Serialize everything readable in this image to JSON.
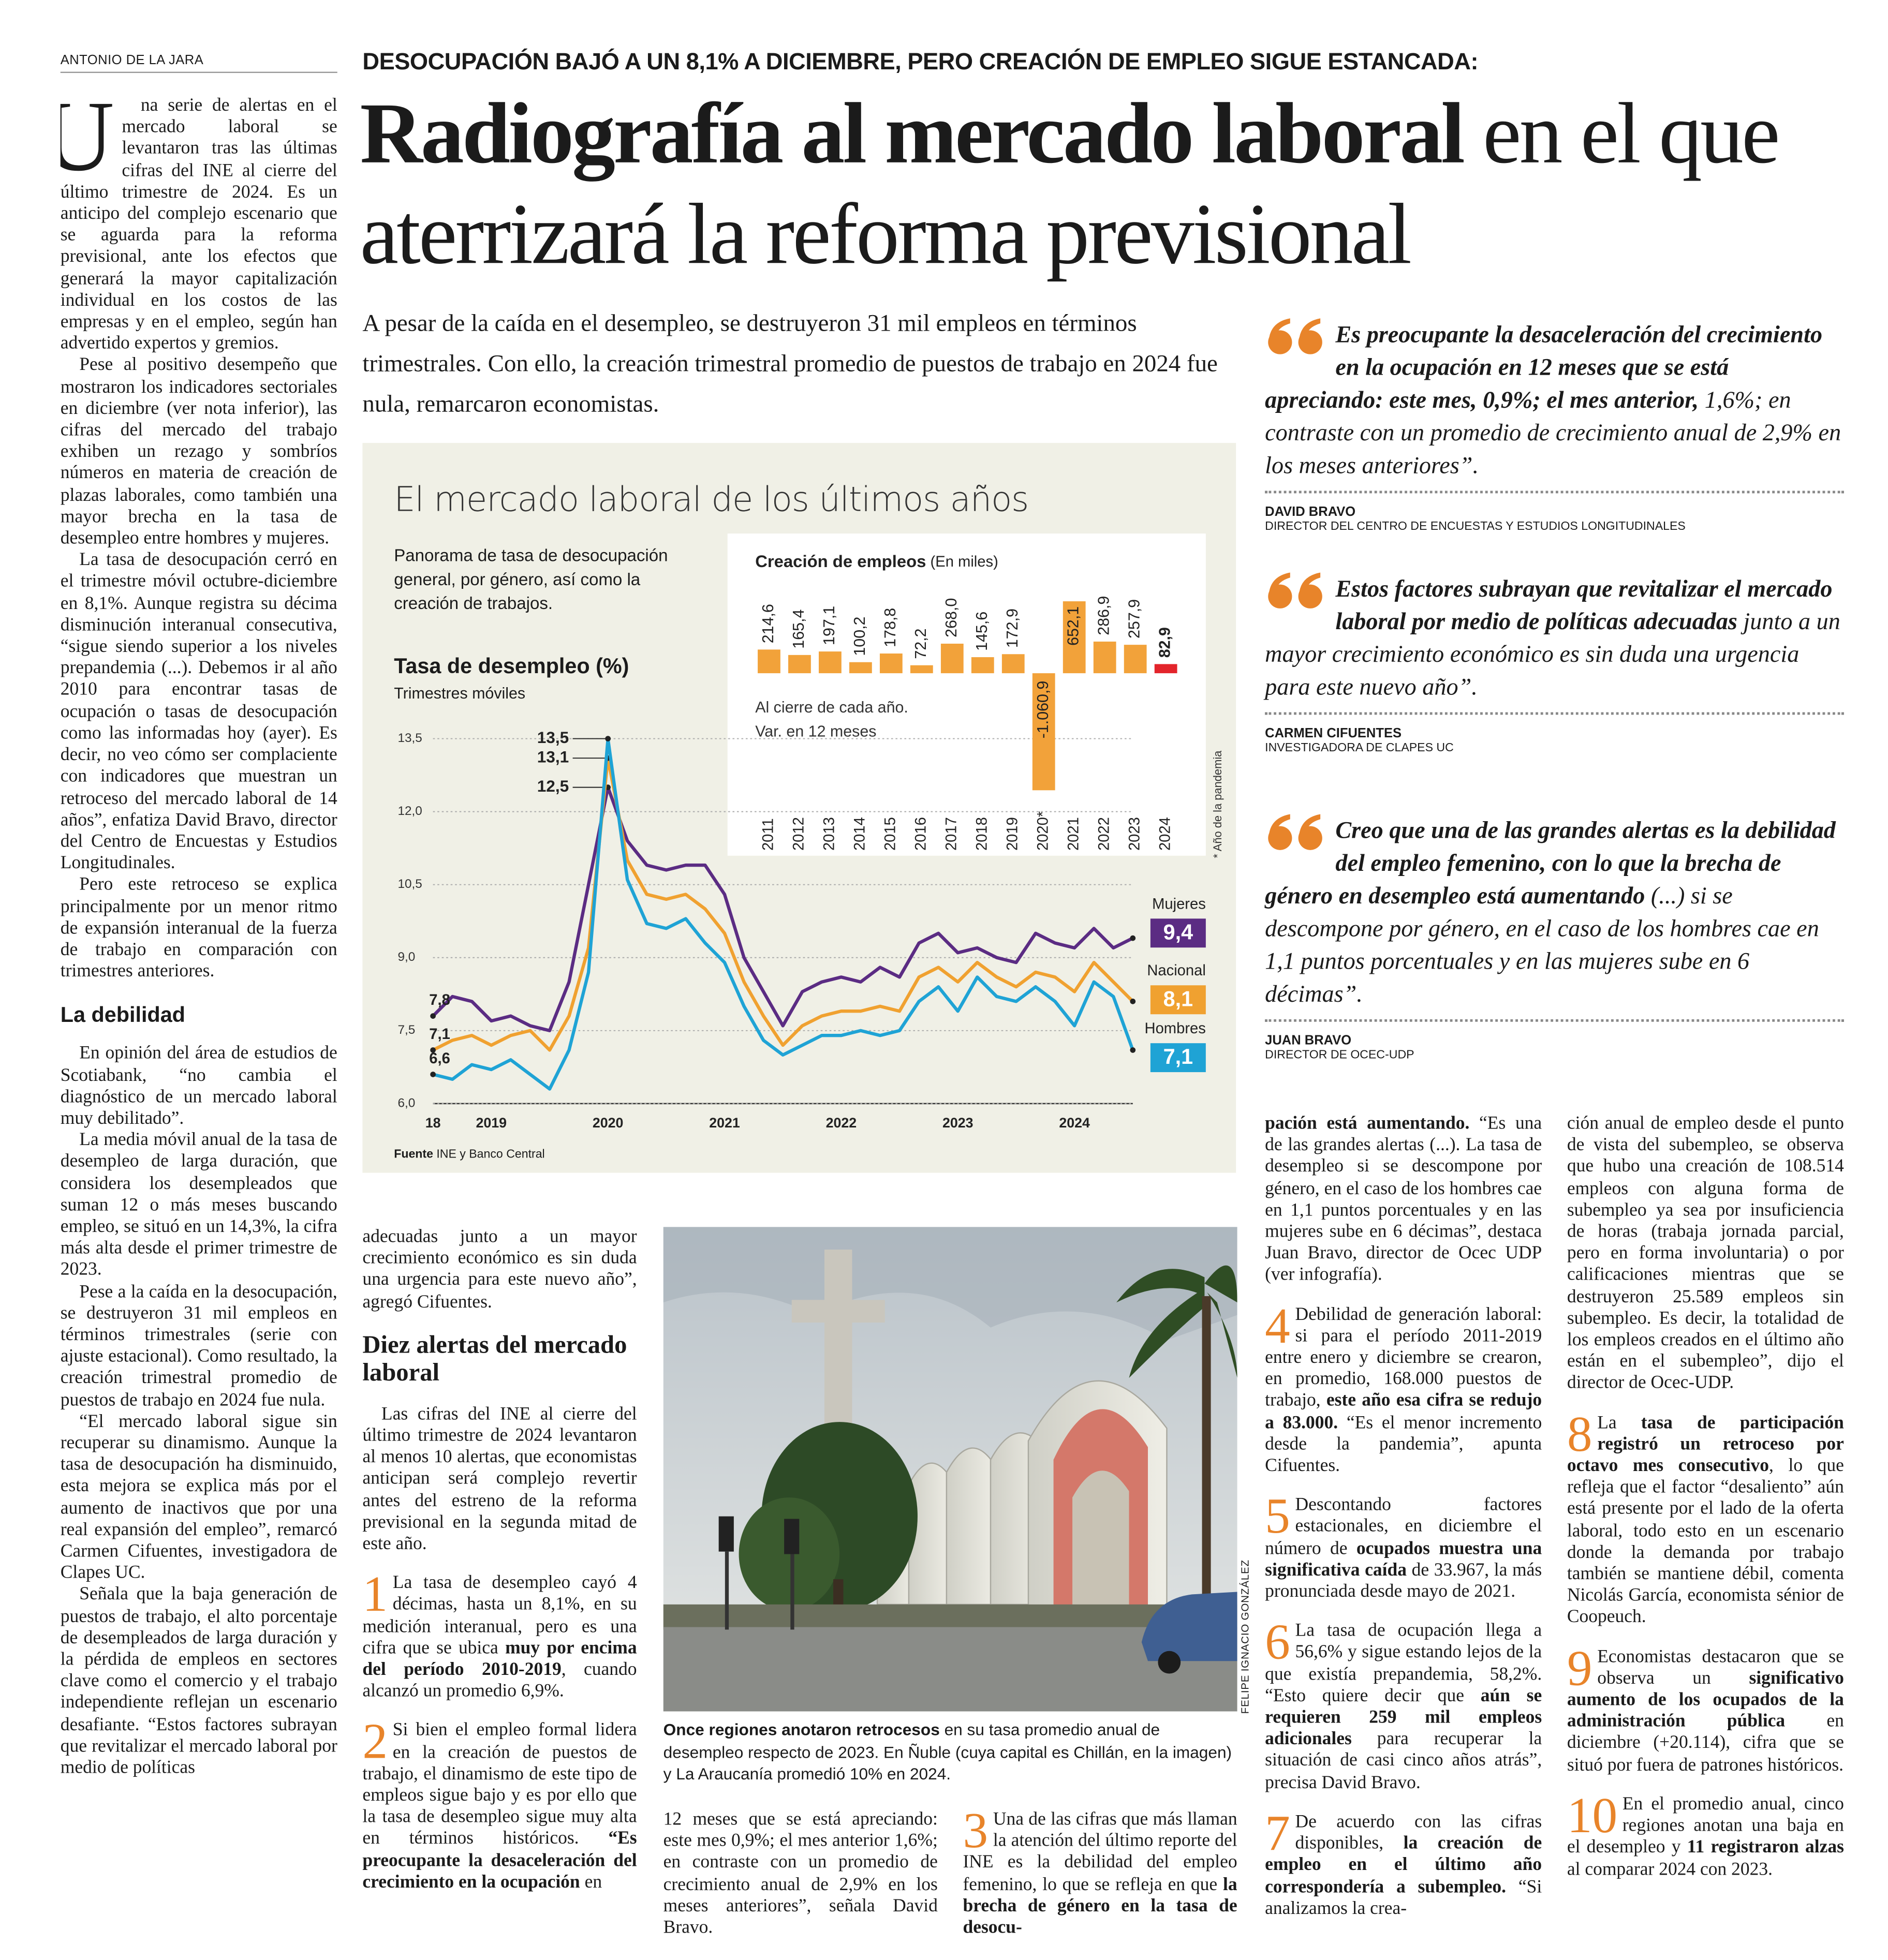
{
  "article": {
    "byline": "ANTONIO DE LA JARA",
    "kicker": "DESOCUPACIÓN BAJÓ A UN 8,1% A DICIEMBRE, PERO CREACIÓN DE EMPLEO SIGUE ESTANCADA:",
    "title": [
      {
        "text": "Radiografía al mercado laboral",
        "bold": true
      },
      {
        "text": " en el que aterrizará la reforma previsional"
      }
    ],
    "deck": "A pesar de la caída en el desempleo, se destruyeron 31 mil empleos en términos trimestrales. Con ello, la creación trimestral promedio de puestos de trabajo en 2024 fue nula, remarcaron economistas.",
    "columns": [
      [
        {
          "kind": "p",
          "dropcap": "U",
          "text": "na serie de alertas en el mercado laboral se levantaron tras las últimas cifras del INE al cierre del último trimestre de 2024. Es un anticipo del complejo escenario que se aguarda para la reforma previsional, ante los efectos que generará la mayor capitalización individual en los costos de las empresas y en el empleo, según han advertido expertos y gremios."
        },
        {
          "kind": "p",
          "text": "Pese al positivo desempeño que mostraron los indicadores sectoriales en diciembre (ver nota inferior), las cifras del mercado del trabajo exhiben un rezago y sombríos números en materia de creación de plazas laborales, como también una mayor brecha en la tasa de desempleo entre hombres y mujeres."
        },
        {
          "kind": "p",
          "text": "La tasa de desocupación cerró en el trimestre móvil octubre-diciembre en 8,1%. Aunque registra su décima disminución interanual consecutiva, “sigue siendo superior a los niveles prepandemia (...). Debemos ir al año 2010 para encontrar tasas de ocupación o tasas de desocupación como las informadas hoy (ayer). Es decir, no veo cómo ser complaciente con indicadores que muestran un retroceso del mercado laboral de 14 años”, enfatiza David Bravo, director del Centro de Encuestas y Estudios Longitudinales."
        },
        {
          "kind": "p",
          "text": "Pero este retroceso se explica principalmente por un menor ritmo de expansión interanual de la fuerza de trabajo en comparación con trimestres anteriores."
        },
        {
          "kind": "h",
          "text": "La debilidad"
        },
        {
          "kind": "p",
          "text": "En opinión del área de estudios de Scotiabank, “no cambia el diagnóstico de un mercado laboral muy debilitado”."
        },
        {
          "kind": "p",
          "text": "La media móvil anual de la tasa de desempleo de larga duración, que considera los desempleados que suman 12 o más meses buscando empleo, se situó en un 14,3%, la cifra más alta desde el primer trimestre de 2023."
        },
        {
          "kind": "p",
          "text": "Pese a la caída en la desocupación, se destruyeron 31 mil empleos en términos trimestrales (serie con ajuste estacional). Como resultado, la creación trimestral promedio de puestos de trabajo en 2024 fue nula."
        },
        {
          "kind": "p",
          "text": "“El mercado laboral sigue sin recuperar su dinamismo. Aunque la tasa de desocupación ha disminuido, esta mejora se explica más por el aumento de inactivos que por una real expansión del empleo”, remarcó Carmen Cifuentes, investigadora de Clapes UC."
        },
        {
          "kind": "p",
          "text": "Señala que la baja generación de puestos de trabajo, el alto porcentaje de desempleados de larga duración y la pérdida de empleos en sectores clave como el comercio y el trabajo independiente reflejan un escenario desafiante. “Estos factores subrayan que revitalizar el mercado laboral por medio de políticas"
        }
      ],
      [
        {
          "kind": "p",
          "indent": false,
          "text": "adecuadas junto a un mayor crecimiento económico es sin duda una urgencia para este nuevo año”, agregó Cifuentes."
        },
        {
          "kind": "hs",
          "text": "Diez alertas del mercado laboral"
        },
        {
          "kind": "p",
          "text": "Las cifras del INE al cierre del último trimestre de 2024 levantaron al menos 10 alertas, que economistas anticipan será complejo revertir antes del estreno de la reforma previsional en la segunda mitad de este año."
        },
        {
          "kind": "item",
          "number": "1",
          "runs": [
            {
              "text": "La tasa de desempleo cayó 4 décimas, hasta un 8,1%, en su medición interanual, pero es una cifra que se ubica "
            },
            {
              "text": "muy por encima del período 2010-2019",
              "bold": true
            },
            {
              "text": ", cuando alcanzó un promedio 6,9%."
            }
          ]
        },
        {
          "kind": "item",
          "number": "2",
          "runs": [
            {
              "text": "Si bien el empleo formal lidera en la creación de puestos de trabajo, el dinamismo de este tipo de empleos sigue bajo y es por ello que la tasa de desempleo sigue muy alta en términos históricos. "
            },
            {
              "text": "“Es preocupante la desaceleración del crecimiento en la ocupación",
              "bold": true
            },
            {
              "text": " en"
            }
          ]
        }
      ],
      [
        {
          "kind": "p",
          "indent": false,
          "text": "12 meses que se está apreciando: este mes 0,9%; el mes anterior 1,6%; en contraste con un promedio de crecimiento anual de 2,9% en los meses anteriores”, señala David Bravo."
        }
      ],
      [
        {
          "kind": "item",
          "number": "3",
          "runs": [
            {
              "text": "Una de las cifras que más llaman la atención del último reporte del INE es la debilidad del empleo femenino, lo que se refleja en que "
            },
            {
              "text": "la brecha de género en la tasa de desocu-",
              "bold": true
            }
          ]
        }
      ],
      [
        {
          "kind": "p",
          "indent": false,
          "runs": [
            {
              "text": "pación está aumentando.",
              "bold": true
            },
            {
              "text": " “Es una de las grandes alertas (...). La tasa de desempleo si se descompone por género, en el caso de los hombres cae en 1,1 puntos porcentuales y en las mujeres sube en 6 décimas”, destaca Juan Bravo, director de Ocec UDP (ver infografía)."
            }
          ]
        },
        {
          "kind": "item",
          "number": "4",
          "runs": [
            {
              "text": "Debilidad de generación laboral: si para el período 2011-2019 entre enero y diciembre se crearon, en promedio, 168.000 puestos de trabajo, "
            },
            {
              "text": "este año esa cifra se redujo a 83.000.",
              "bold": true
            },
            {
              "text": " “Es el menor incremento desde la pandemia”, apunta Cifuentes."
            }
          ]
        },
        {
          "kind": "item",
          "number": "5",
          "runs": [
            {
              "text": "Descontando factores estacionales, en diciembre el número de "
            },
            {
              "text": "ocupados muestra una significativa caída",
              "bold": true
            },
            {
              "text": " de 33.967, la más pronunciada desde mayo de 2021."
            }
          ]
        },
        {
          "kind": "item",
          "number": "6",
          "runs": [
            {
              "text": "La tasa de ocupación llega a 56,6% y sigue estando lejos de la que existía prepandemia, 58,2%. “Esto quiere decir que "
            },
            {
              "text": "aún se requieren 259 mil empleos adicionales",
              "bold": true
            },
            {
              "text": " para recuperar la situación de casi cinco años atrás”, precisa David Bravo."
            }
          ]
        },
        {
          "kind": "item",
          "number": "7",
          "runs": [
            {
              "text": "De acuerdo con las cifras disponibles, "
            },
            {
              "text": "la creación de empleo en el último año correspondería a subempleo.",
              "bold": true
            },
            {
              "text": " “Si analizamos la crea-"
            }
          ]
        }
      ],
      [
        {
          "kind": "p",
          "indent": false,
          "text": "ción anual de empleo desde el punto de vista del subempleo, se observa que hubo una creación de 108.514 empleos con alguna forma de subempleo ya sea por insuficiencia de horas (trabaja jornada parcial, pero en forma involuntaria) o por calificaciones mientras que se destruyeron 25.589 empleos sin subempleo. Es decir, la totalidad de los empleos creados en el último año están en el subempleo”, dijo el director de Ocec-UDP."
        },
        {
          "kind": "item",
          "number": "8",
          "runs": [
            {
              "text": "La "
            },
            {
              "text": "tasa de participación registró un retroceso por octavo mes consecutivo",
              "bold": true
            },
            {
              "text": ", lo que refleja que el factor “desaliento” aún está presente por el lado de la oferta laboral, todo esto en un escenario donde la demanda por trabajo también se mantiene débil, comenta Nicolás García, economista sénior de Coopeuch."
            }
          ]
        },
        {
          "kind": "item",
          "number": "9",
          "runs": [
            {
              "text": "Economistas destacaron que se observa un "
            },
            {
              "text": "significativo aumento de los ocupados de la administración pública",
              "bold": true
            },
            {
              "text": " en diciembre (+20.114), cifra que se situó por fuera de patrones históricos."
            }
          ]
        },
        {
          "kind": "item",
          "number": "10",
          "runs": [
            {
              "text": "En el promedio anual, cinco regiones anotan una baja en el desempleo y "
            },
            {
              "text": "11 registraron alzas",
              "bold": true
            },
            {
              "text": " al comparar 2024 con 2023."
            }
          ]
        }
      ]
    ],
    "quotes": [
      {
        "runs": [
          {
            "text": "Es preocupante la desaceleración del crecimiento en la ocupación en 12 meses que se está apreciando: este mes, 0,9%; el mes anterior,",
            "bold": true
          },
          {
            "text": " 1,6%; en contraste con un promedio de crecimiento anual de 2,9% en los meses anteriores”."
          }
        ],
        "author": "DAVID BRAVO",
        "role": "DIRECTOR DEL CENTRO DE ENCUESTAS Y ESTUDIOS LONGITUDINALES"
      },
      {
        "runs": [
          {
            "text": "Estos factores subrayan que revitalizar el mercado laboral por medio de políticas adecuadas",
            "bold": true
          },
          {
            "text": " junto a un mayor crecimiento económico es sin duda una urgencia para este nuevo año”."
          }
        ],
        "author": "CARMEN CIFUENTES",
        "role": "INVESTIGADORA DE CLAPES UC"
      },
      {
        "runs": [
          {
            "text": "Creo que una de las grandes alertas es la debilidad del empleo femenino, con lo que la brecha de género en desempleo está aumentando",
            "bold": true
          },
          {
            "text": " (...) si se descompone por género, en el caso de los hombres cae en 1,1 puntos porcentuales y en las mujeres sube en 6 décimas”."
          }
        ],
        "author": "JUAN BRAVO",
        "role": "DIRECTOR DE OCEC-UDP"
      }
    ],
    "photo": {
      "caption": [
        {
          "text": "Once regiones anotaron retrocesos",
          "bold": true
        },
        {
          "text": " en su tasa promedio anual de desempleo respecto de 2023. En Ñuble (cuya capital es Chillán, en la imagen) y La Araucanía promedió 10% en 2024."
        }
      ],
      "credit": "FELIPE IGNACIO GONZÁLEZ"
    }
  },
  "infographic": {
    "title": "El mercado laboral de los últimos años",
    "intro": "Panorama de tasa de desocupación general, por género, así como la creación de trabajos.",
    "source_label": "Fuente",
    "source": " INE y Banco Central"
  },
  "chart_data": [
    {
      "type": "line",
      "title": "Tasa de desempleo (%)",
      "subtitle": "Trimestres móviles",
      "categories": [
        "18",
        null,
        null,
        "2019",
        null,
        null,
        null,
        null,
        null,
        "2020",
        null,
        null,
        null,
        null,
        null,
        "2021",
        null,
        null,
        null,
        null,
        null,
        "2022",
        null,
        null,
        null,
        null,
        null,
        "2023",
        null,
        null,
        null,
        null,
        null,
        "2024",
        null,
        null,
        null
      ],
      "series": [
        {
          "name": "Mujeres",
          "color": "#5b2c83",
          "values": [
            7.8,
            8.2,
            8.1,
            7.7,
            7.8,
            7.6,
            7.5,
            8.5,
            10.5,
            12.5,
            11.4,
            10.9,
            10.8,
            10.9,
            10.9,
            10.3,
            9.0,
            8.3,
            7.6,
            8.3,
            8.5,
            8.6,
            8.5,
            8.8,
            8.6,
            9.3,
            9.5,
            9.1,
            9.2,
            9.0,
            8.9,
            9.5,
            9.3,
            9.2,
            9.6,
            9.2,
            9.4
          ],
          "value_labels": [
            "7,8",
            null,
            null,
            null,
            null,
            null,
            null,
            null,
            null,
            "12,5",
            null,
            null,
            null,
            null,
            null,
            null,
            null,
            null,
            null,
            null,
            null,
            null,
            null,
            null,
            null,
            null,
            null,
            null,
            null,
            null,
            null,
            null,
            null,
            null,
            null,
            null,
            "9,4"
          ]
        },
        {
          "name": "Nacional",
          "color": "#f0a130",
          "values": [
            7.1,
            7.3,
            7.4,
            7.2,
            7.4,
            7.5,
            7.1,
            7.8,
            9.2,
            13.1,
            11.0,
            10.3,
            10.2,
            10.3,
            10.0,
            9.5,
            8.5,
            7.8,
            7.2,
            7.6,
            7.8,
            7.9,
            7.9,
            8.0,
            7.9,
            8.6,
            8.8,
            8.5,
            8.9,
            8.6,
            8.4,
            8.7,
            8.6,
            8.3,
            8.9,
            8.5,
            8.1
          ],
          "value_labels": [
            "7,1",
            null,
            null,
            null,
            null,
            null,
            null,
            null,
            null,
            "13,1",
            null,
            null,
            null,
            null,
            null,
            null,
            null,
            null,
            null,
            null,
            null,
            null,
            null,
            null,
            null,
            null,
            null,
            null,
            null,
            null,
            null,
            null,
            null,
            null,
            null,
            null,
            "8,1"
          ]
        },
        {
          "name": "Hombres",
          "color": "#1fa3d5",
          "values": [
            6.6,
            6.5,
            6.8,
            6.7,
            6.9,
            6.6,
            6.3,
            7.1,
            8.7,
            13.5,
            10.6,
            9.7,
            9.6,
            9.8,
            9.3,
            8.9,
            8.0,
            7.3,
            7.0,
            7.2,
            7.4,
            7.4,
            7.5,
            7.4,
            7.5,
            8.1,
            8.4,
            7.9,
            8.6,
            8.2,
            8.1,
            8.4,
            8.1,
            7.6,
            8.5,
            8.2,
            7.1
          ],
          "value_labels": [
            "6,6",
            null,
            null,
            null,
            null,
            null,
            null,
            null,
            null,
            "13,5",
            null,
            null,
            null,
            null,
            null,
            null,
            null,
            null,
            null,
            null,
            null,
            null,
            null,
            null,
            null,
            null,
            null,
            null,
            null,
            null,
            null,
            null,
            null,
            null,
            null,
            null,
            "7,1"
          ]
        }
      ],
      "ylim": [
        6.0,
        13.5
      ],
      "yticks": [
        {
          "value": 6.0,
          "label": "6,0"
        },
        {
          "value": 7.5,
          "label": "7,5"
        },
        {
          "value": 9.0,
          "label": "9,0"
        },
        {
          "value": 10.5,
          "label": "10,5"
        },
        {
          "value": 12.0,
          "label": "12,0"
        },
        {
          "value": 13.5,
          "label": "13,5"
        }
      ],
      "grid": true
    },
    {
      "type": "bar",
      "title": "Creación de empleos",
      "subtitle": " (En miles)",
      "categories": [
        "2011",
        "2012",
        "2013",
        "2014",
        "2015",
        "2016",
        "2017",
        "2018",
        "2019",
        "2020*",
        "2021",
        "2022",
        "2023",
        "2024"
      ],
      "values": [
        214.6,
        165.4,
        197.1,
        100.2,
        178.8,
        72.2,
        268.0,
        145.6,
        172.9,
        -1060.9,
        652.1,
        286.9,
        257.9,
        82.9
      ],
      "value_labels": [
        "214,6",
        "165,4",
        "197,1",
        "100,2",
        "178,8",
        "72,2",
        "268,0",
        "145,6",
        "172,9",
        "-1.060,9",
        "652,1",
        "286,9",
        "257,9",
        "82,9"
      ],
      "colors": [
        "#f2a23a",
        "#f2a23a",
        "#f2a23a",
        "#f2a23a",
        "#f2a23a",
        "#f2a23a",
        "#f2a23a",
        "#f2a23a",
        "#f2a23a",
        "#f2a23a",
        "#f2a23a",
        "#f2a23a",
        "#f2a23a",
        "#e3242b"
      ],
      "notes": [
        "Al cierre de cada año.",
        "Var. en 12 meses"
      ],
      "footnote": "* Año de la pandemia"
    }
  ]
}
